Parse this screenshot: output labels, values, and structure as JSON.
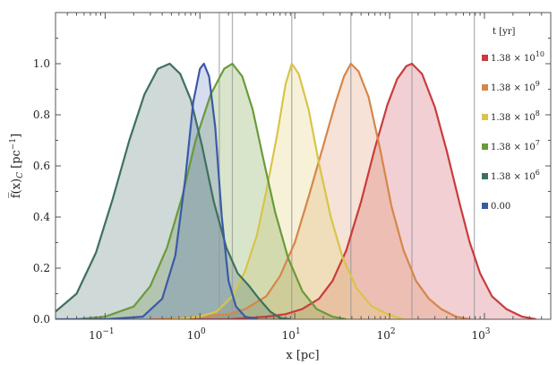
{
  "chart_data": {
    "type": "area",
    "xlabel": "x [pc]",
    "ylabel": "f̅(x)",
    "ylabel_sub": "C",
    "ylabel_unit": " [pc",
    "ylabel_unit_sup": "−1",
    "ylabel_unit_close": "]",
    "xscale": "log",
    "xlim": [
      0.03,
      5000
    ],
    "ylim": [
      0,
      1.2
    ],
    "yticks": [
      "0.0",
      "0.2",
      "0.4",
      "0.6",
      "0.8",
      "1.0"
    ],
    "xticks": [
      {
        "base": "10",
        "exp": "−1",
        "value": 0.1
      },
      {
        "base": "10",
        "exp": "0",
        "value": 1
      },
      {
        "base": "10",
        "exp": "1",
        "value": 10
      },
      {
        "base": "10",
        "exp": "2",
        "value": 100
      },
      {
        "base": "10",
        "exp": "3",
        "value": 1000
      }
    ],
    "vertical_lines": [
      1.6,
      2.2,
      9.3,
      39,
      172,
      780
    ],
    "legend_title": "t [yr]",
    "legend_position": "right",
    "series": [
      {
        "mantissa": "1.38 × 10",
        "exp": "10",
        "color": "#c83c3c",
        "fill": "rgba(205,65,75,0.25)",
        "points": [
          [
            0.3,
            0
          ],
          [
            2,
            0
          ],
          [
            5,
            0.01
          ],
          [
            8,
            0.02
          ],
          [
            12,
            0.04
          ],
          [
            18,
            0.08
          ],
          [
            25,
            0.15
          ],
          [
            35,
            0.27
          ],
          [
            50,
            0.46
          ],
          [
            70,
            0.67
          ],
          [
            95,
            0.84
          ],
          [
            120,
            0.94
          ],
          [
            150,
            0.99
          ],
          [
            172,
            1.0
          ],
          [
            220,
            0.96
          ],
          [
            300,
            0.83
          ],
          [
            400,
            0.66
          ],
          [
            550,
            0.45
          ],
          [
            700,
            0.3
          ],
          [
            900,
            0.18
          ],
          [
            1200,
            0.09
          ],
          [
            1700,
            0.04
          ],
          [
            2500,
            0.01
          ],
          [
            3500,
            0
          ]
        ]
      },
      {
        "mantissa": "1.38 × 10",
        "exp": "9",
        "color": "#d6864a",
        "fill": "rgba(220,140,90,0.25)",
        "points": [
          [
            0.3,
            0
          ],
          [
            0.6,
            0.005
          ],
          [
            1,
            0.01
          ],
          [
            2,
            0.02
          ],
          [
            3,
            0.04
          ],
          [
            5,
            0.09
          ],
          [
            7,
            0.17
          ],
          [
            10,
            0.3
          ],
          [
            14,
            0.48
          ],
          [
            20,
            0.68
          ],
          [
            27,
            0.85
          ],
          [
            33,
            0.95
          ],
          [
            39,
            1.0
          ],
          [
            47,
            0.97
          ],
          [
            60,
            0.87
          ],
          [
            80,
            0.66
          ],
          [
            105,
            0.44
          ],
          [
            140,
            0.27
          ],
          [
            190,
            0.15
          ],
          [
            260,
            0.08
          ],
          [
            350,
            0.04
          ],
          [
            500,
            0.01
          ],
          [
            700,
            0
          ]
        ]
      },
      {
        "mantissa": "1.38 × 10",
        "exp": "8",
        "color": "#d8c44a",
        "fill": "rgba(225,210,110,0.28)",
        "points": [
          [
            0.5,
            0
          ],
          [
            1,
            0.01
          ],
          [
            1.5,
            0.03
          ],
          [
            2.2,
            0.09
          ],
          [
            3,
            0.19
          ],
          [
            4,
            0.33
          ],
          [
            5,
            0.5
          ],
          [
            6.5,
            0.72
          ],
          [
            8,
            0.92
          ],
          [
            9.3,
            1.0
          ],
          [
            11,
            0.96
          ],
          [
            14,
            0.82
          ],
          [
            18,
            0.61
          ],
          [
            24,
            0.4
          ],
          [
            32,
            0.24
          ],
          [
            45,
            0.12
          ],
          [
            65,
            0.05
          ],
          [
            95,
            0.02
          ],
          [
            140,
            0
          ]
        ]
      },
      {
        "mantissa": "1.38 × 10",
        "exp": "7",
        "color": "#6a9a3c",
        "fill": "rgba(120,160,70,0.28)",
        "points": [
          [
            0.05,
            0
          ],
          [
            0.1,
            0.01
          ],
          [
            0.2,
            0.05
          ],
          [
            0.3,
            0.13
          ],
          [
            0.45,
            0.28
          ],
          [
            0.65,
            0.48
          ],
          [
            0.9,
            0.7
          ],
          [
            1.3,
            0.88
          ],
          [
            1.8,
            0.98
          ],
          [
            2.2,
            1.0
          ],
          [
            2.8,
            0.95
          ],
          [
            3.6,
            0.82
          ],
          [
            4.7,
            0.62
          ],
          [
            6.2,
            0.42
          ],
          [
            8.5,
            0.24
          ],
          [
            12,
            0.11
          ],
          [
            17,
            0.04
          ],
          [
            25,
            0.01
          ],
          [
            35,
            0
          ]
        ]
      },
      {
        "mantissa": "1.38 × 10",
        "exp": "6",
        "color": "#3e7060",
        "fill": "rgba(70,110,100,0.26)",
        "points": [
          [
            0.03,
            0.03
          ],
          [
            0.05,
            0.1
          ],
          [
            0.08,
            0.26
          ],
          [
            0.12,
            0.47
          ],
          [
            0.18,
            0.7
          ],
          [
            0.26,
            0.88
          ],
          [
            0.36,
            0.98
          ],
          [
            0.48,
            1.0
          ],
          [
            0.62,
            0.96
          ],
          [
            0.8,
            0.86
          ],
          [
            1.05,
            0.68
          ],
          [
            1.4,
            0.46
          ],
          [
            1.9,
            0.28
          ],
          [
            2.5,
            0.18
          ],
          [
            3.3,
            0.13
          ],
          [
            4.2,
            0.08
          ],
          [
            5.5,
            0.03
          ],
          [
            7,
            0.005
          ],
          [
            9,
            0
          ]
        ]
      },
      {
        "mantissa": "0.00",
        "exp": "",
        "color": "#3a5aa8",
        "fill": "rgba(70,100,180,0.22)",
        "points": [
          [
            0.03,
            0
          ],
          [
            0.1,
            0
          ],
          [
            0.25,
            0.01
          ],
          [
            0.4,
            0.08
          ],
          [
            0.55,
            0.25
          ],
          [
            0.7,
            0.55
          ],
          [
            0.85,
            0.85
          ],
          [
            1.0,
            0.98
          ],
          [
            1.1,
            1.0
          ],
          [
            1.25,
            0.95
          ],
          [
            1.45,
            0.75
          ],
          [
            1.7,
            0.4
          ],
          [
            2.0,
            0.15
          ],
          [
            2.4,
            0.05
          ],
          [
            3.0,
            0.01
          ],
          [
            4,
            0
          ]
        ]
      }
    ]
  }
}
